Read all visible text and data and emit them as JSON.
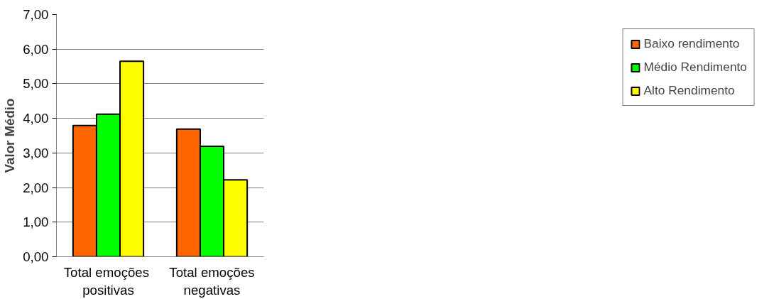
{
  "chart_data": {
    "type": "bar",
    "ylabel": "Valor Médio",
    "categories": [
      "Total  emoções\npositivas",
      "Total emoções\nnegativas"
    ],
    "series": [
      {
        "name": "Baixo rendimento",
        "color": "#ff6600",
        "values": [
          3.79,
          3.69
        ]
      },
      {
        "name": "Médio Rendimento",
        "color": "#00ff00",
        "values": [
          4.12,
          3.19
        ]
      },
      {
        "name": "Alto Rendimento",
        "color": "#ffff00",
        "values": [
          5.65,
          2.22
        ]
      }
    ],
    "ylim": [
      0,
      7
    ],
    "yticks": [
      {
        "value": 0,
        "label": "0,00"
      },
      {
        "value": 1,
        "label": "1,00"
      },
      {
        "value": 2,
        "label": "2,00"
      },
      {
        "value": 3,
        "label": "3,00"
      },
      {
        "value": 4,
        "label": "4,00"
      },
      {
        "value": 5,
        "label": "5,00"
      },
      {
        "value": 6,
        "label": "6,00"
      },
      {
        "value": 7,
        "label": "7,00"
      }
    ],
    "grid": "y",
    "legend": "right"
  }
}
